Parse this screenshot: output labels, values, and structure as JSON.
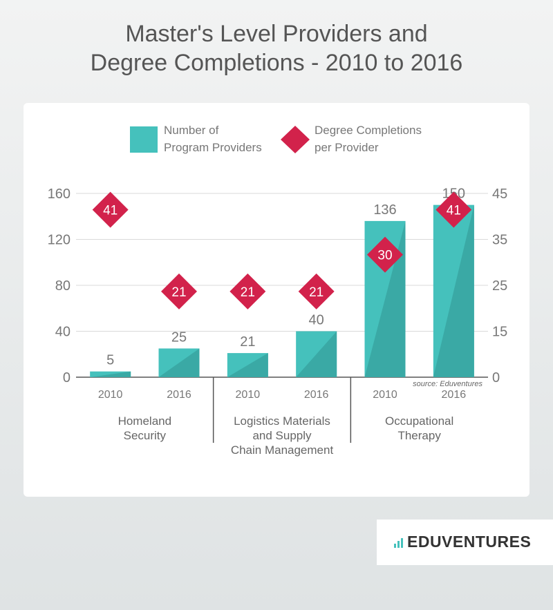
{
  "title": "Master's Level  Providers and\nDegree Completions - 2010 to 2016",
  "legend": {
    "providers": [
      "Number of",
      "Program Providers"
    ],
    "completions": [
      "Degree Completions",
      "per Provider"
    ]
  },
  "source": "source: Eduventures",
  "logo": {
    "text": "EDUVENTURES",
    "icon": "bar-chart-icon"
  },
  "colors": {
    "bar": "#45c1bc",
    "bar_shade": "#3aa9a5",
    "marker": "#d2224b",
    "axis_text": "#777777"
  },
  "chart_data": {
    "type": "bar",
    "categories": [
      "2010",
      "2016",
      "2010",
      "2016",
      "2010",
      "2016"
    ],
    "groups": [
      [
        "Homeland",
        "Security"
      ],
      [
        "Logistics Materials",
        "and Supply",
        "Chain Management"
      ],
      [
        "Occupational",
        "Therapy"
      ]
    ],
    "ylim": [
      0,
      160
    ],
    "yticks": [
      "0",
      "40",
      "80",
      "120",
      "160"
    ],
    "y2lim": [
      0,
      45
    ],
    "y2ticks": [
      "0",
      "15",
      "25",
      "35",
      "45"
    ],
    "series": [
      {
        "name": "Number of Program Providers",
        "values": [
          5,
          25,
          21,
          40,
          136,
          150
        ]
      },
      {
        "name": "Degree Completions per Provider",
        "values": [
          41,
          21,
          21,
          21,
          30,
          41
        ]
      }
    ]
  }
}
